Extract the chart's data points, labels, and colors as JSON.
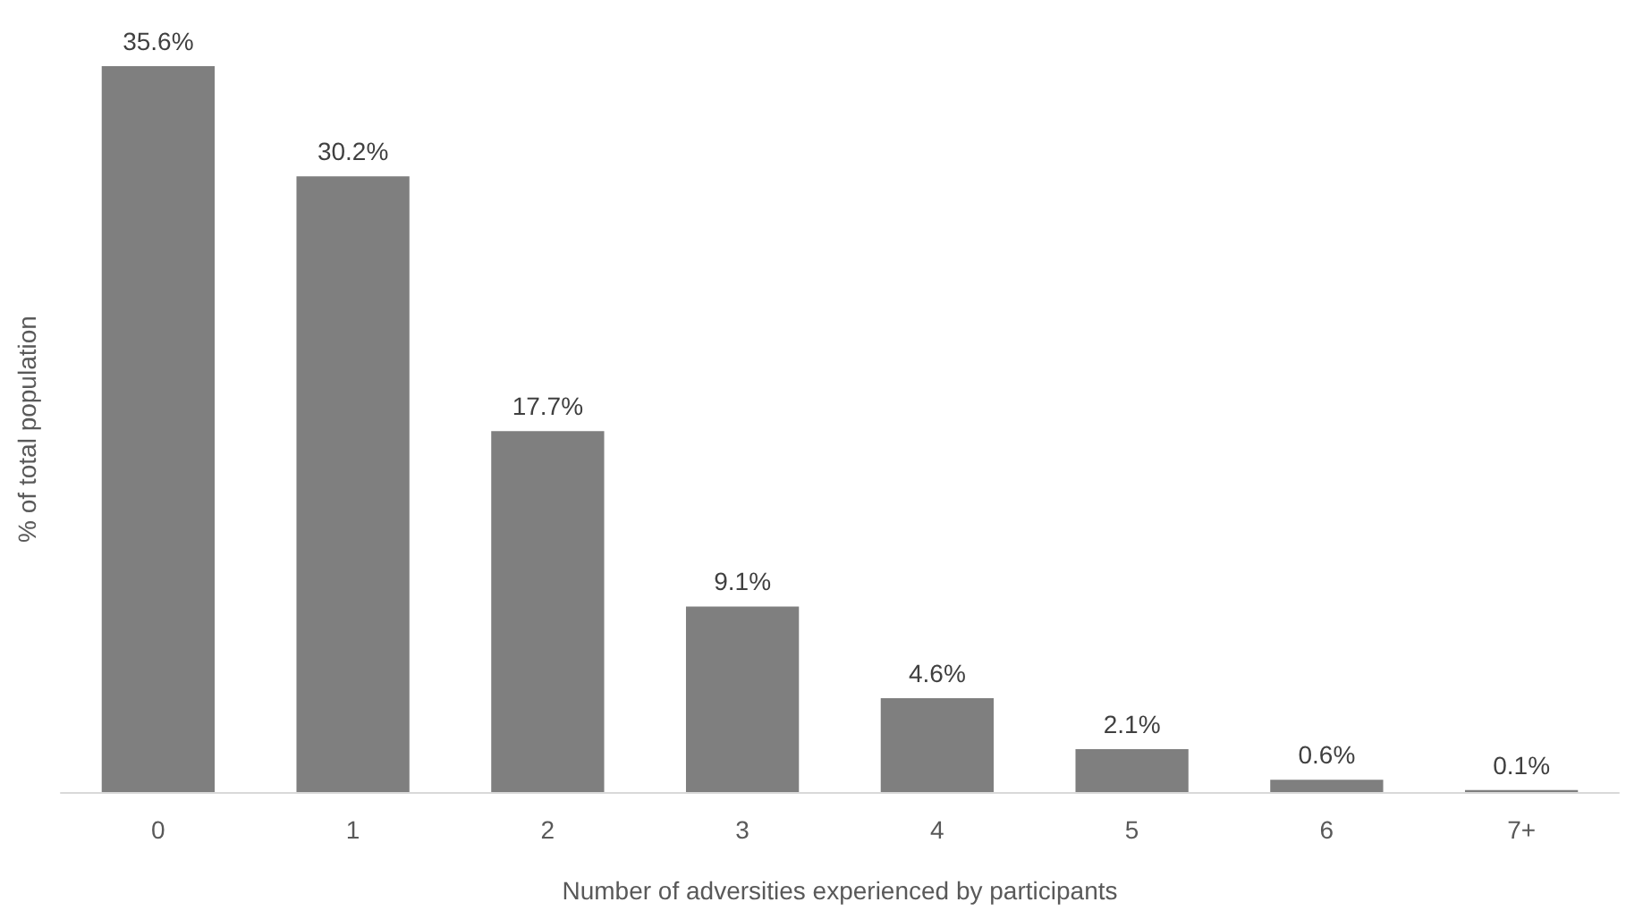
{
  "chart_data": {
    "type": "bar",
    "xlabel": "Number of adversities experienced by participants",
    "ylabel": "% of total population",
    "categories": [
      "0",
      "1",
      "2",
      "3",
      "4",
      "5",
      "6",
      "7+"
    ],
    "values": [
      35.6,
      30.2,
      17.7,
      9.1,
      4.6,
      2.1,
      0.6,
      0.1
    ],
    "value_labels": [
      "35.6%",
      "30.2%",
      "17.7%",
      "9.1%",
      "4.6%",
      "2.1%",
      "0.6%",
      "0.1%"
    ],
    "color": "#7f7f7f",
    "grid": false
  }
}
